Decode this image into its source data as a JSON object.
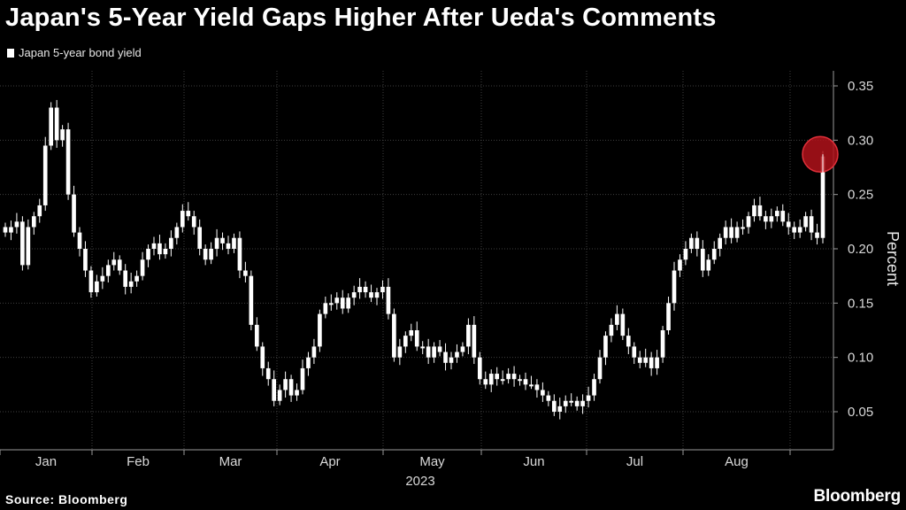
{
  "title": "Japan's 5-Year Yield Gaps Higher After Ueda's Comments",
  "source": "Source: Bloomberg",
  "brand": "Bloomberg",
  "colors": {
    "background": "#000000",
    "candle": "#ffffff",
    "grid": "#3a3a3a",
    "highlight": "#c0121a"
  },
  "chart_data": {
    "type": "candlestick",
    "title": "Japan's 5-Year Yield Gaps Higher After Ueda's Comments",
    "legend": [
      "Japan 5-year bond yield"
    ],
    "legend_placement": "top-left",
    "ylabel": "Percent",
    "xlabel": "2023",
    "ylim": [
      0.02,
      0.35
    ],
    "y_ticks": [
      "0.05",
      "0.10",
      "0.15",
      "0.20",
      "0.25",
      "0.30",
      "0.35"
    ],
    "x_ticks": [
      "Jan",
      "Feb",
      "Mar",
      "Apr",
      "May",
      "Jun",
      "Jul",
      "Aug"
    ],
    "grid": "dotted-horizontal",
    "annotation": "red circle highlighting latest session",
    "series": [
      {
        "name": "Japan 5-year bond yield",
        "close": [
          0.215,
          0.22,
          0.225,
          0.185,
          0.22,
          0.23,
          0.24,
          0.295,
          0.33,
          0.3,
          0.31,
          0.25,
          0.215,
          0.2,
          0.18,
          0.16,
          0.17,
          0.175,
          0.185,
          0.19,
          0.18,
          0.165,
          0.17,
          0.175,
          0.19,
          0.2,
          0.205,
          0.195,
          0.2,
          0.21,
          0.22,
          0.235,
          0.23,
          0.22,
          0.2,
          0.19,
          0.2,
          0.21,
          0.205,
          0.2,
          0.21,
          0.18,
          0.175,
          0.13,
          0.11,
          0.09,
          0.08,
          0.06,
          0.07,
          0.08,
          0.065,
          0.07,
          0.09,
          0.1,
          0.11,
          0.14,
          0.15,
          0.15,
          0.155,
          0.145,
          0.155,
          0.16,
          0.165,
          0.16,
          0.155,
          0.16,
          0.165,
          0.14,
          0.1,
          0.11,
          0.12,
          0.125,
          0.11,
          0.11,
          0.1,
          0.11,
          0.105,
          0.095,
          0.1,
          0.105,
          0.11,
          0.13,
          0.1,
          0.08,
          0.075,
          0.085,
          0.08,
          0.08,
          0.085,
          0.08,
          0.08,
          0.075,
          0.075,
          0.07,
          0.065,
          0.06,
          0.05,
          0.055,
          0.06,
          0.06,
          0.055,
          0.06,
          0.065,
          0.08,
          0.1,
          0.12,
          0.13,
          0.14,
          0.12,
          0.11,
          0.1,
          0.095,
          0.1,
          0.09,
          0.1,
          0.125,
          0.15,
          0.18,
          0.19,
          0.2,
          0.21,
          0.2,
          0.18,
          0.19,
          0.2,
          0.21,
          0.22,
          0.21,
          0.22,
          0.22,
          0.23,
          0.24,
          0.23,
          0.225,
          0.23,
          0.235,
          0.225,
          0.22,
          0.215,
          0.22,
          0.23,
          0.215,
          0.21,
          0.285
        ]
      }
    ]
  }
}
